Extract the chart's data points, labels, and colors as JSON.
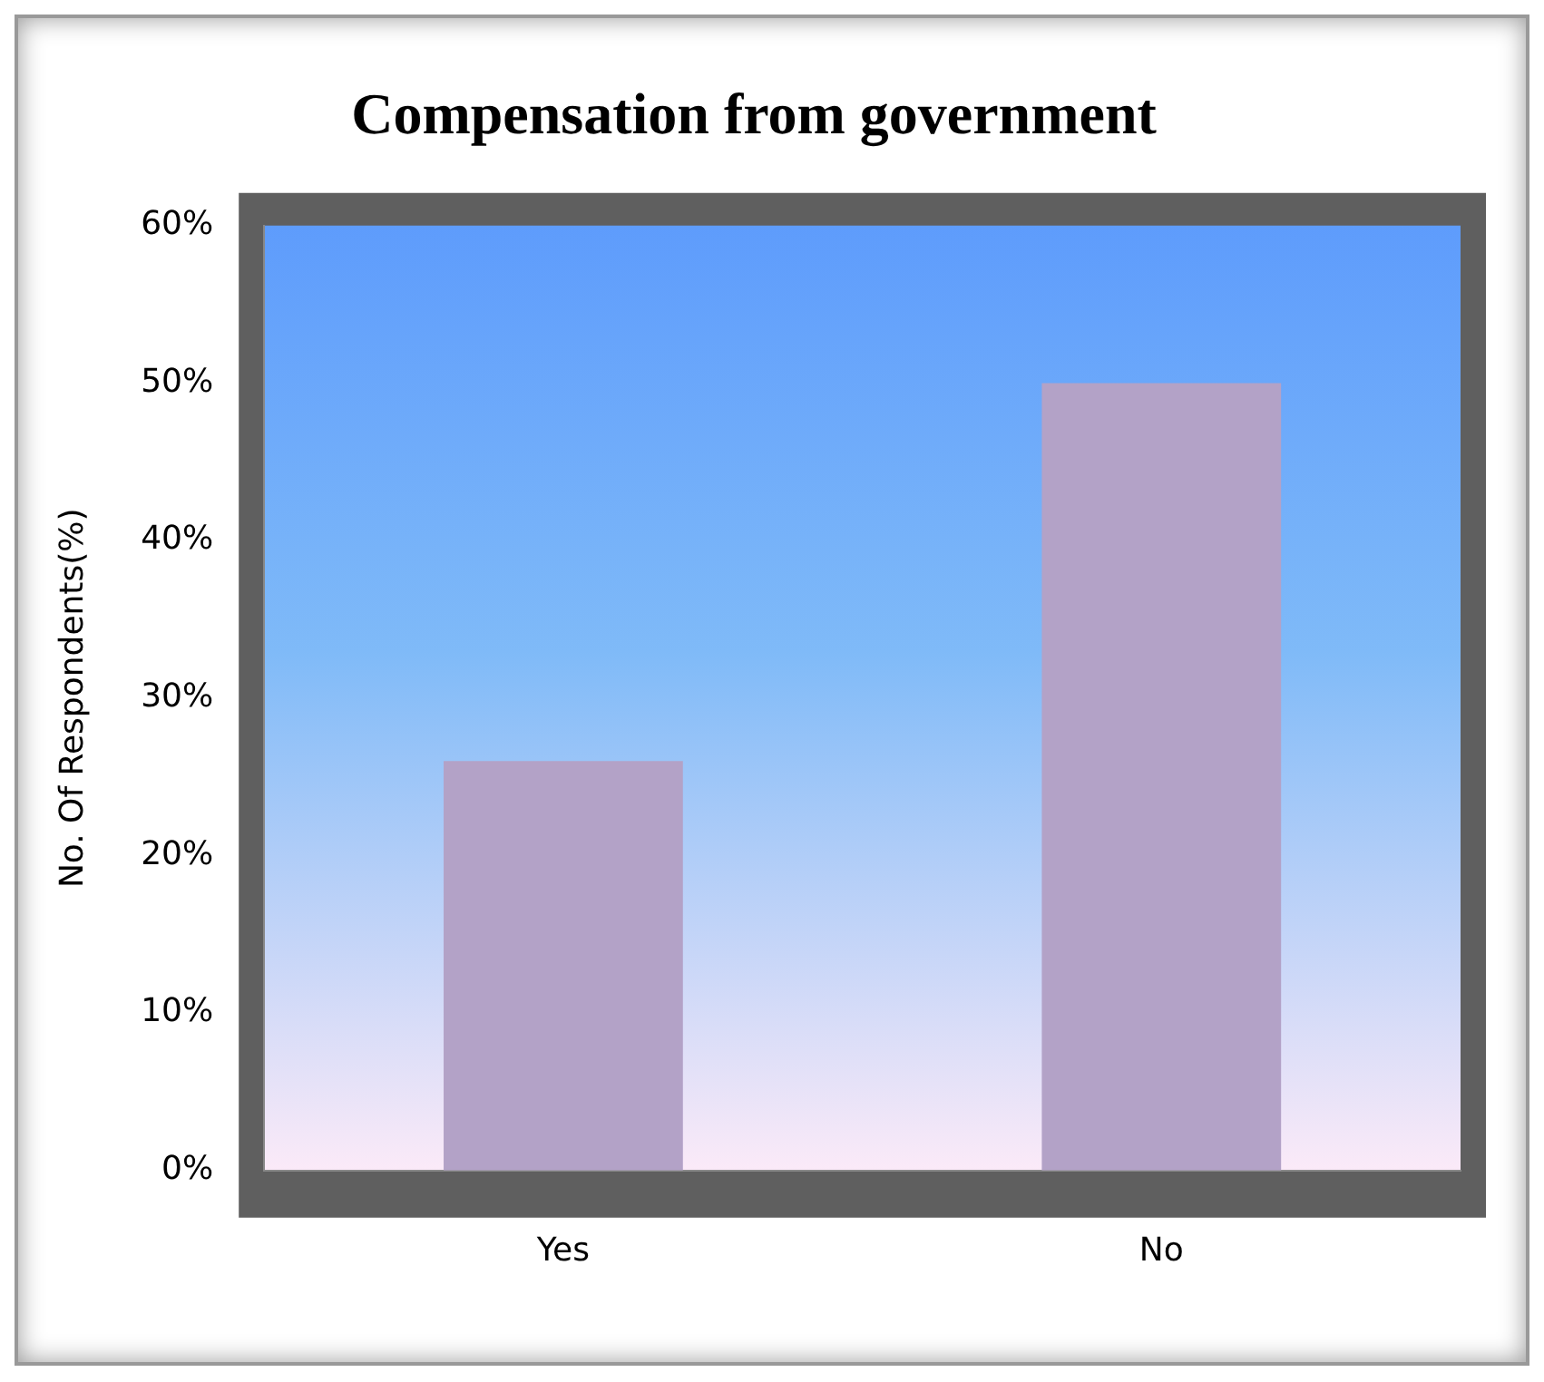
{
  "chart_data": {
    "type": "bar",
    "title": "Compensation from government",
    "ylabel": "No. Of Respondents(%)",
    "categories": [
      "Yes",
      "No"
    ],
    "values": [
      26,
      50
    ],
    "color": "#b3a2c7",
    "ylim": [
      0,
      60
    ],
    "yticks": [
      {
        "value": 0,
        "label": "0%"
      },
      {
        "value": 10,
        "label": "10%"
      },
      {
        "value": 20,
        "label": "20%"
      },
      {
        "value": 30,
        "label": "30%"
      },
      {
        "value": 40,
        "label": "40%"
      },
      {
        "value": 50,
        "label": "50%"
      },
      {
        "value": 60,
        "label": "60%"
      }
    ],
    "grid": false,
    "legend": false
  }
}
